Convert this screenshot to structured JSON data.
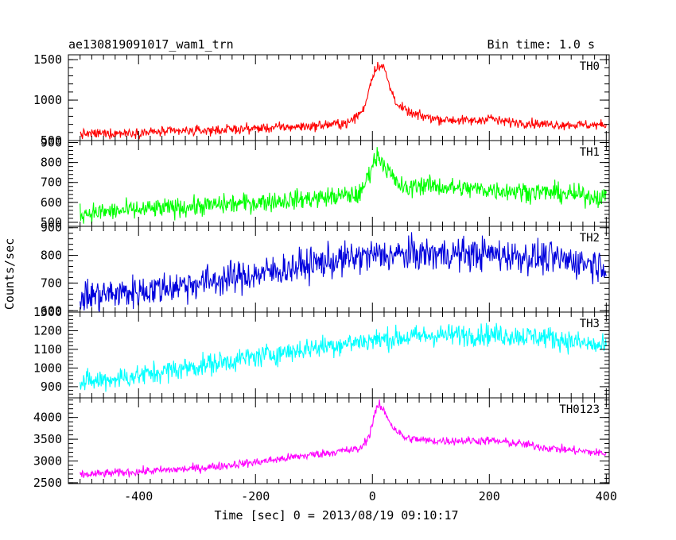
{
  "header": {
    "title": "ae130819091017_wam1_trn",
    "bin_time": "Bin time: 1.0 s"
  },
  "chart_data": {
    "type": "line",
    "xlabel": "Time [sec] 0 = 2013/08/19 09:10:17",
    "ylabel": "Counts/sec",
    "xlim": [
      -520,
      405
    ],
    "xticks": [
      -400,
      -200,
      0,
      200,
      400
    ],
    "grid": false,
    "panels": [
      {
        "name": "TH0",
        "color": "#ff0000",
        "ylim": [
          500,
          1560
        ],
        "yticks": [
          500,
          1000,
          1500
        ],
        "noise": 55,
        "profile": [
          [
            -500,
            580
          ],
          [
            -300,
            620
          ],
          [
            -100,
            680
          ],
          [
            -40,
            720
          ],
          [
            -15,
            880
          ],
          [
            0,
            1300
          ],
          [
            10,
            1440
          ],
          [
            20,
            1400
          ],
          [
            30,
            1150
          ],
          [
            45,
            920
          ],
          [
            70,
            820
          ],
          [
            120,
            760
          ],
          [
            180,
            740
          ],
          [
            200,
            790
          ],
          [
            215,
            740
          ],
          [
            300,
            700
          ],
          [
            400,
            690
          ]
        ]
      },
      {
        "name": "TH1",
        "color": "#00ff00",
        "ylim": [
          480,
          910
        ],
        "yticks": [
          500,
          600,
          700,
          800,
          900
        ],
        "noise": 45,
        "profile": [
          [
            -500,
            545
          ],
          [
            -300,
            580
          ],
          [
            -200,
            600
          ],
          [
            -100,
            620
          ],
          [
            -20,
            640
          ],
          [
            0,
            790
          ],
          [
            10,
            840
          ],
          [
            20,
            790
          ],
          [
            40,
            700
          ],
          [
            60,
            660
          ],
          [
            75,
            690
          ],
          [
            150,
            670
          ],
          [
            300,
            650
          ],
          [
            400,
            625
          ]
        ]
      },
      {
        "name": "TH2",
        "color": "#0000dd",
        "ylim": [
          595,
          905
        ],
        "yticks": [
          600,
          700,
          800,
          900
        ],
        "noise": 55,
        "profile": [
          [
            -500,
            650
          ],
          [
            -400,
            670
          ],
          [
            -300,
            700
          ],
          [
            -200,
            730
          ],
          [
            -100,
            770
          ],
          [
            0,
            800
          ],
          [
            100,
            805
          ],
          [
            200,
            805
          ],
          [
            300,
            790
          ],
          [
            400,
            765
          ]
        ]
      },
      {
        "name": "TH3",
        "color": "#00ffff",
        "ylim": [
          840,
          1300
        ],
        "yticks": [
          900,
          1000,
          1100,
          1200,
          1300
        ],
        "noise": 55,
        "profile": [
          [
            -500,
            920
          ],
          [
            -400,
            960
          ],
          [
            -300,
            1010
          ],
          [
            -200,
            1060
          ],
          [
            -100,
            1110
          ],
          [
            0,
            1150
          ],
          [
            100,
            1175
          ],
          [
            200,
            1180
          ],
          [
            300,
            1165
          ],
          [
            400,
            1110
          ]
        ]
      },
      {
        "name": "TH0123",
        "color": "#ff00ff",
        "ylim": [
          2480,
          4450
        ],
        "yticks": [
          2500,
          3000,
          3500,
          4000
        ],
        "noise": 90,
        "profile": [
          [
            -500,
            2680
          ],
          [
            -300,
            2830
          ],
          [
            -200,
            2970
          ],
          [
            -100,
            3150
          ],
          [
            -20,
            3280
          ],
          [
            -5,
            3600
          ],
          [
            5,
            4150
          ],
          [
            12,
            4280
          ],
          [
            22,
            4100
          ],
          [
            35,
            3780
          ],
          [
            55,
            3530
          ],
          [
            100,
            3460
          ],
          [
            200,
            3470
          ],
          [
            250,
            3400
          ],
          [
            300,
            3300
          ],
          [
            400,
            3170
          ]
        ]
      }
    ]
  }
}
